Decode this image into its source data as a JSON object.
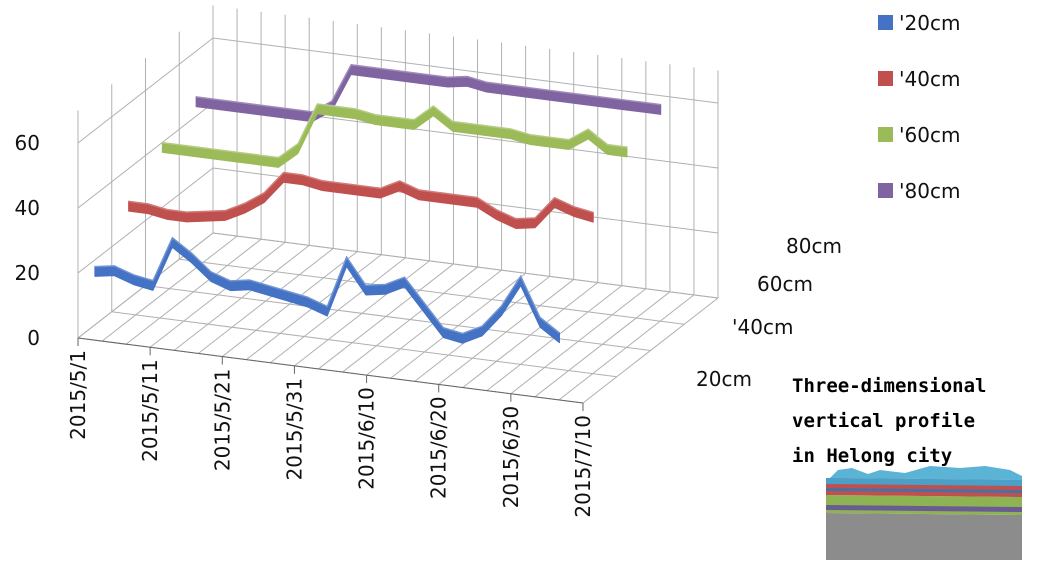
{
  "chart_data": {
    "type": "line",
    "subtype": "3d-ribbon",
    "x": [
      "2015/5/1",
      "2015/5/4",
      "2015/5/7",
      "2015/5/10",
      "2015/5/13",
      "2015/5/16",
      "2015/5/19",
      "2015/5/22",
      "2015/5/25",
      "2015/5/28",
      "2015/5/31",
      "2015/6/3",
      "2015/6/6",
      "2015/6/9",
      "2015/6/12",
      "2015/6/15",
      "2015/6/18",
      "2015/6/21",
      "2015/6/24",
      "2015/6/27",
      "2015/6/30",
      "2015/7/3",
      "2015/7/6",
      "2015/7/9",
      "2015/7/12"
    ],
    "x_tick_labels": [
      "2015/5/1",
      "2015/5/11",
      "2015/5/21",
      "2015/5/31",
      "2015/6/10",
      "2015/6/20",
      "2015/6/30",
      "2015/7/10"
    ],
    "depth_labels": [
      "20cm",
      "60cm",
      "'40cm",
      "80cm"
    ],
    "y_ticks": [
      "0",
      "20",
      "40",
      "60"
    ],
    "ylim": [
      0,
      60
    ],
    "grid": true,
    "legend_position": "top-right",
    "series": [
      {
        "name": "'20cm",
        "color": "#4472c4",
        "values": [
          18,
          19,
          17,
          16,
          30,
          26,
          21,
          19,
          20,
          19,
          18,
          17,
          15,
          31,
          23,
          24,
          27,
          20,
          13,
          12,
          15,
          22,
          32,
          20,
          16
        ]
      },
      {
        "name": "'40cm",
        "color": "#c0504d",
        "values": [
          30,
          30,
          29,
          29,
          30,
          31,
          34,
          38,
          45,
          45,
          44,
          44,
          44,
          44,
          47,
          45,
          45,
          45,
          45,
          42,
          40,
          41,
          48,
          46,
          45
        ]
      },
      {
        "name": "'60cm",
        "color": "#9bbb59",
        "values": [
          40,
          40,
          40,
          40,
          40,
          40,
          40,
          45,
          58,
          58,
          58,
          57,
          57,
          57,
          62,
          58,
          58,
          58,
          58,
          57,
          57,
          57,
          61,
          57,
          57
        ]
      },
      {
        "name": "'80cm",
        "color": "#8064a2",
        "values": [
          46,
          46,
          46,
          46,
          46,
          46,
          46,
          50,
          62,
          62,
          62,
          62,
          62,
          62,
          63,
          62,
          62,
          62,
          62,
          62,
          62,
          62,
          62,
          62,
          62
        ]
      }
    ]
  },
  "caption": {
    "lines": [
      "Three-dimensional",
      "vertical profile",
      "in Helong city"
    ]
  }
}
